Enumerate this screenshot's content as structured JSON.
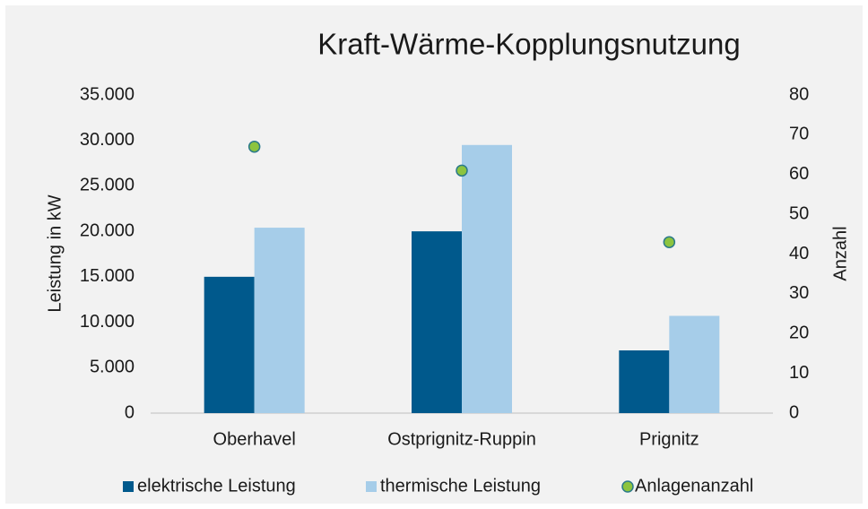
{
  "chart_data": {
    "type": "bar",
    "title": "Kraft-Wärme-Kopplungsnutzung",
    "y_label": "Leistung in kW",
    "y2_label": "Anzahl",
    "categories": [
      "Oberhavel",
      "Ostprignitz-Ruppin",
      "Prignitz"
    ],
    "series": [
      {
        "name": "elektrische Leistung",
        "color": "#00598c",
        "values": [
          15000,
          20000,
          6900
        ]
      },
      {
        "name": "thermische Leistung",
        "color": "#a6cde9",
        "values": [
          20400,
          29500,
          10700
        ]
      },
      {
        "name": "Anlagenanzahl",
        "type": "scatter",
        "axis": "y2",
        "color": "#8cc43f",
        "values": [
          67,
          61,
          43
        ]
      }
    ],
    "ylim": [
      0,
      35000
    ],
    "yticks": [
      0,
      {
        "value": 5000,
        "label": "5.000"
      },
      {
        "value": 10000,
        "label": "10.000"
      },
      {
        "value": 15000,
        "label": "15.000"
      },
      {
        "value": 20000,
        "label": "20.000"
      },
      {
        "value": 25000,
        "label": "25.000"
      },
      {
        "value": 30000,
        "label": "30.000"
      },
      {
        "value": 35000,
        "label": "35.000"
      }
    ],
    "y2lim": [
      0,
      80
    ],
    "y2ticks": [
      0,
      10,
      20,
      30,
      40,
      50,
      60,
      70,
      80
    ],
    "legend": "bottom",
    "grid": false
  }
}
